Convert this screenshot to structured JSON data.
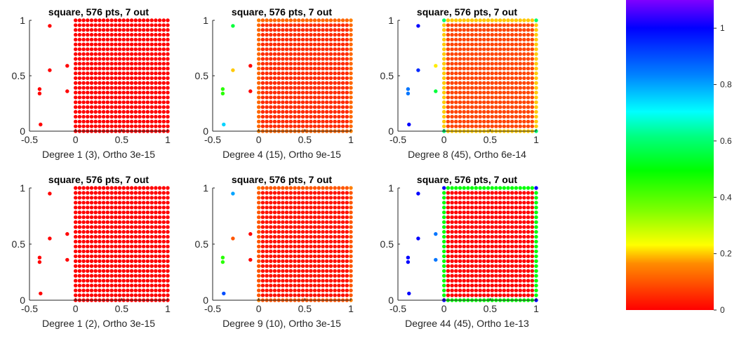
{
  "chart_data": {
    "type": "scatter",
    "panels": [
      {
        "title": "square, 576 pts, 7 out",
        "xlabel": "Degree 1 (3), Ortho 3e-15",
        "xlim": [
          -0.5,
          1
        ],
        "ylim": [
          0,
          1
        ],
        "xticks": [
          "-0.5",
          "0",
          "0.5",
          "1"
        ],
        "yticks": [
          "0",
          "0.5",
          "1"
        ],
        "outliers": [
          {
            "x": -0.28,
            "y": 0.95,
            "v": 0.0
          },
          {
            "x": -0.28,
            "y": 0.55,
            "v": 0.0
          },
          {
            "x": -0.09,
            "y": 0.59,
            "v": 0.0
          },
          {
            "x": -0.09,
            "y": 0.36,
            "v": 0.0
          },
          {
            "x": -0.39,
            "y": 0.38,
            "v": 0.0
          },
          {
            "x": -0.39,
            "y": 0.34,
            "v": 0.0
          },
          {
            "x": -0.38,
            "y": 0.06,
            "v": 0.0
          }
        ],
        "grid": {
          "x_from": 0.0,
          "x_to": 1.0,
          "x_count": 24,
          "y_from": 0.0,
          "y_to": 1.0,
          "y_count": 24,
          "interior_value": 0.0,
          "edge_value": 0.0,
          "corner_value": 0.0
        }
      },
      {
        "title": "square, 576 pts, 7 out",
        "xlabel": "Degree 4 (15), Ortho 9e-15",
        "xlim": [
          -0.5,
          1
        ],
        "ylim": [
          0,
          1
        ],
        "xticks": [
          "-0.5",
          "0",
          "0.5",
          "1"
        ],
        "yticks": [
          "0",
          "0.5",
          "1"
        ],
        "outliers": [
          {
            "x": -0.28,
            "y": 0.95,
            "v": 0.55
          },
          {
            "x": -0.28,
            "y": 0.55,
            "v": 0.2
          },
          {
            "x": -0.09,
            "y": 0.59,
            "v": 0.0
          },
          {
            "x": -0.09,
            "y": 0.36,
            "v": 0.0
          },
          {
            "x": -0.39,
            "y": 0.38,
            "v": 0.45
          },
          {
            "x": -0.39,
            "y": 0.34,
            "v": 0.45
          },
          {
            "x": -0.38,
            "y": 0.06,
            "v": 0.75
          }
        ],
        "grid": {
          "x_from": 0.0,
          "x_to": 1.0,
          "x_count": 24,
          "y_from": 0.0,
          "y_to": 1.0,
          "y_count": 24,
          "interior_value": 0.05,
          "edge_value": 0.12,
          "corner_value": 0.15
        }
      },
      {
        "title": "square, 576 pts, 7 out",
        "xlabel": "Degree 8 (45), Ortho 6e-14",
        "xlim": [
          -0.5,
          1
        ],
        "ylim": [
          0,
          1
        ],
        "xticks": [
          "-0.5",
          "0",
          "0.5",
          "1"
        ],
        "yticks": [
          "0",
          "0.5",
          "1"
        ],
        "outliers": [
          {
            "x": -0.28,
            "y": 0.95,
            "v": 1.0
          },
          {
            "x": -0.28,
            "y": 0.55,
            "v": 0.95
          },
          {
            "x": -0.09,
            "y": 0.59,
            "v": 0.22
          },
          {
            "x": -0.09,
            "y": 0.36,
            "v": 0.55
          },
          {
            "x": -0.39,
            "y": 0.38,
            "v": 0.85
          },
          {
            "x": -0.39,
            "y": 0.34,
            "v": 0.85
          },
          {
            "x": -0.38,
            "y": 0.06,
            "v": 1.0
          }
        ],
        "grid": {
          "x_from": 0.0,
          "x_to": 1.0,
          "x_count": 24,
          "y_from": 0.0,
          "y_to": 1.0,
          "y_count": 24,
          "interior_value": 0.08,
          "edge_value": 0.2,
          "corner_value": 0.6
        }
      },
      {
        "title": "square, 576 pts, 7 out",
        "xlabel": "Degree 1 (2), Ortho 3e-15",
        "xlim": [
          -0.5,
          1
        ],
        "ylim": [
          0,
          1
        ],
        "xticks": [
          "-0.5",
          "0",
          "0.5",
          "1"
        ],
        "yticks": [
          "0",
          "0.5",
          "1"
        ],
        "outliers": [
          {
            "x": -0.28,
            "y": 0.95,
            "v": 0.0
          },
          {
            "x": -0.28,
            "y": 0.55,
            "v": 0.0
          },
          {
            "x": -0.09,
            "y": 0.59,
            "v": 0.0
          },
          {
            "x": -0.09,
            "y": 0.36,
            "v": 0.0
          },
          {
            "x": -0.39,
            "y": 0.38,
            "v": 0.0
          },
          {
            "x": -0.39,
            "y": 0.34,
            "v": 0.0
          },
          {
            "x": -0.38,
            "y": 0.06,
            "v": 0.0
          }
        ],
        "grid": {
          "x_from": 0.0,
          "x_to": 1.0,
          "x_count": 24,
          "y_from": 0.0,
          "y_to": 1.0,
          "y_count": 24,
          "interior_value": 0.0,
          "edge_value": 0.0,
          "corner_value": 0.0
        }
      },
      {
        "title": "square, 576 pts, 7 out",
        "xlabel": "Degree 9 (10), Ortho 3e-15",
        "xlim": [
          -0.5,
          1
        ],
        "ylim": [
          0,
          1
        ],
        "xticks": [
          "-0.5",
          "0",
          "0.5",
          "1"
        ],
        "yticks": [
          "0",
          "0.5",
          "1"
        ],
        "outliers": [
          {
            "x": -0.28,
            "y": 0.95,
            "v": 0.8
          },
          {
            "x": -0.28,
            "y": 0.55,
            "v": 0.1
          },
          {
            "x": -0.09,
            "y": 0.59,
            "v": 0.0
          },
          {
            "x": -0.09,
            "y": 0.36,
            "v": 0.0
          },
          {
            "x": -0.39,
            "y": 0.38,
            "v": 0.45
          },
          {
            "x": -0.39,
            "y": 0.34,
            "v": 0.45
          },
          {
            "x": -0.38,
            "y": 0.06,
            "v": 0.9
          }
        ],
        "grid": {
          "x_from": 0.0,
          "x_to": 1.0,
          "x_count": 24,
          "y_from": 0.0,
          "y_to": 1.0,
          "y_count": 24,
          "interior_value": 0.02,
          "edge_value": 0.1,
          "corner_value": 0.15
        }
      },
      {
        "title": "square, 576 pts, 7 out",
        "xlabel": "Degree 44 (45), Ortho 1e-13",
        "xlim": [
          -0.5,
          1
        ],
        "ylim": [
          0,
          1
        ],
        "xticks": [
          "-0.5",
          "0",
          "0.5",
          "1"
        ],
        "yticks": [
          "0",
          "0.5",
          "1"
        ],
        "outliers": [
          {
            "x": -0.28,
            "y": 0.95,
            "v": 1.0
          },
          {
            "x": -0.28,
            "y": 0.55,
            "v": 1.0
          },
          {
            "x": -0.09,
            "y": 0.59,
            "v": 0.85
          },
          {
            "x": -0.09,
            "y": 0.36,
            "v": 0.85
          },
          {
            "x": -0.39,
            "y": 0.38,
            "v": 1.0
          },
          {
            "x": -0.39,
            "y": 0.34,
            "v": 1.0
          },
          {
            "x": -0.38,
            "y": 0.06,
            "v": 1.0
          }
        ],
        "grid": {
          "x_from": 0.0,
          "x_to": 1.0,
          "x_count": 24,
          "y_from": 0.0,
          "y_to": 1.0,
          "y_count": 24,
          "interior_value": 0.0,
          "edge_value": 0.5,
          "corner_value": 1.0
        }
      }
    ],
    "colorbar": {
      "colormap": "hsv (red to violet)",
      "range": [
        0,
        1.1
      ],
      "ticks": [
        {
          "value": 0,
          "label": "0"
        },
        {
          "value": 0.2,
          "label": "0.2"
        },
        {
          "value": 0.4,
          "label": "0.4"
        },
        {
          "value": 0.6,
          "label": "0.6"
        },
        {
          "value": 0.8,
          "label": "0.8"
        },
        {
          "value": 1.0,
          "label": "1"
        }
      ]
    }
  }
}
